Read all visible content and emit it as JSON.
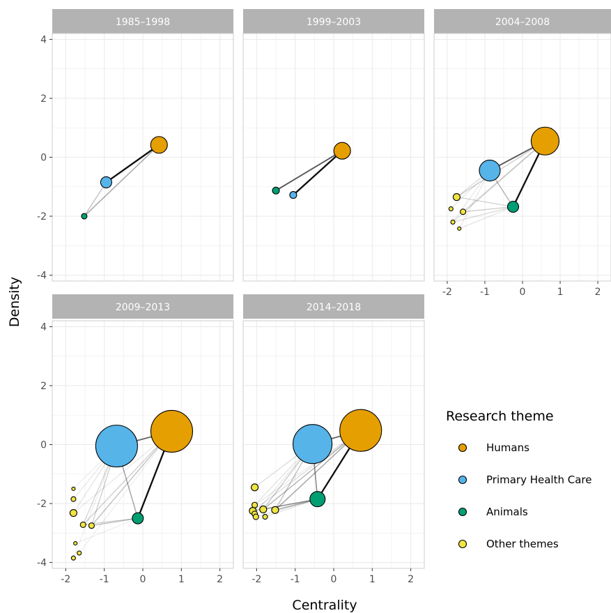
{
  "chart_data": {
    "type": "scatter",
    "xlabel": "Centrality",
    "ylabel": "Density",
    "xlim": [
      -2.35,
      2.35
    ],
    "ylim": [
      -4.2,
      4.2
    ],
    "x_ticks": [
      -2,
      -1,
      0,
      1,
      2
    ],
    "y_ticks": [
      4,
      2,
      0,
      -2,
      -4
    ],
    "grid": true,
    "legend": {
      "title": "Research theme",
      "position": "right",
      "entries": [
        {
          "label": "Humans",
          "color": "#E69F00"
        },
        {
          "label": "Primary Health Care",
          "color": "#56B4E9"
        },
        {
          "label": "Animals",
          "color": "#009E73"
        },
        {
          "label": "Other themes",
          "color": "#F0E442"
        }
      ]
    },
    "panels": [
      {
        "title": "1985–1998",
        "nodes": [
          {
            "theme": "Humans",
            "x": 0.42,
            "y": 0.42,
            "size": 12
          },
          {
            "theme": "Primary Health Care",
            "x": -0.95,
            "y": -0.85,
            "size": 8
          },
          {
            "theme": "Animals",
            "x": -1.52,
            "y": -2.0,
            "size": 4
          }
        ],
        "edges": [
          {
            "from": 0,
            "to": 1,
            "weight": 0.95
          },
          {
            "from": 0,
            "to": 2,
            "weight": 0.35
          },
          {
            "from": 1,
            "to": 2,
            "weight": 0.25
          }
        ]
      },
      {
        "title": "1999–2003",
        "nodes": [
          {
            "theme": "Humans",
            "x": 0.22,
            "y": 0.22,
            "size": 12
          },
          {
            "theme": "Primary Health Care",
            "x": -1.05,
            "y": -1.28,
            "size": 5
          },
          {
            "theme": "Animals",
            "x": -1.5,
            "y": -1.13,
            "size": 5
          }
        ],
        "edges": [
          {
            "from": 0,
            "to": 1,
            "weight": 0.95
          },
          {
            "from": 0,
            "to": 2,
            "weight": 0.65
          }
        ]
      },
      {
        "title": "2004–2008",
        "nodes": [
          {
            "theme": "Humans",
            "x": 0.6,
            "y": 0.55,
            "size": 20
          },
          {
            "theme": "Primary Health Care",
            "x": -0.87,
            "y": -0.45,
            "size": 15
          },
          {
            "theme": "Animals",
            "x": -0.25,
            "y": -1.68,
            "size": 8
          },
          {
            "theme": "Other themes",
            "x": -1.75,
            "y": -1.35,
            "size": 5
          },
          {
            "theme": "Other themes",
            "x": -1.58,
            "y": -1.85,
            "size": 4
          },
          {
            "theme": "Other themes",
            "x": -1.9,
            "y": -1.75,
            "size": 3
          },
          {
            "theme": "Other themes",
            "x": -1.85,
            "y": -2.2,
            "size": 3
          },
          {
            "theme": "Other themes",
            "x": -1.68,
            "y": -2.42,
            "size": 2.5
          }
        ],
        "edges": [
          {
            "from": 0,
            "to": 1,
            "weight": 0.65
          },
          {
            "from": 0,
            "to": 2,
            "weight": 0.95
          },
          {
            "from": 1,
            "to": 2,
            "weight": 0.3
          },
          {
            "from": 0,
            "to": 3,
            "weight": 0.2
          },
          {
            "from": 0,
            "to": 4,
            "weight": 0.18
          },
          {
            "from": 0,
            "to": 6,
            "weight": 0.15
          },
          {
            "from": 1,
            "to": 3,
            "weight": 0.15
          },
          {
            "from": 1,
            "to": 5,
            "weight": 0.1
          },
          {
            "from": 2,
            "to": 4,
            "weight": 0.2
          },
          {
            "from": 2,
            "to": 3,
            "weight": 0.18
          },
          {
            "from": 2,
            "to": 6,
            "weight": 0.15
          },
          {
            "from": 2,
            "to": 7,
            "weight": 0.12
          },
          {
            "from": 1,
            "to": 7,
            "weight": 0.1
          },
          {
            "from": 1,
            "to": 6,
            "weight": 0.1
          }
        ]
      },
      {
        "title": "2009–2013",
        "nodes": [
          {
            "theme": "Humans",
            "x": 0.75,
            "y": 0.45,
            "size": 30
          },
          {
            "theme": "Primary Health Care",
            "x": -0.68,
            "y": -0.05,
            "size": 30
          },
          {
            "theme": "Animals",
            "x": -0.13,
            "y": -2.5,
            "size": 8
          },
          {
            "theme": "Other themes",
            "x": -1.8,
            "y": -1.5,
            "size": 2.5
          },
          {
            "theme": "Other themes",
            "x": -1.8,
            "y": -1.85,
            "size": 3.5
          },
          {
            "theme": "Other themes",
            "x": -1.8,
            "y": -2.32,
            "size": 5
          },
          {
            "theme": "Other themes",
            "x": -1.55,
            "y": -2.72,
            "size": 4
          },
          {
            "theme": "Other themes",
            "x": -1.33,
            "y": -2.75,
            "size": 4
          },
          {
            "theme": "Other themes",
            "x": -1.75,
            "y": -3.35,
            "size": 2.5
          },
          {
            "theme": "Other themes",
            "x": -1.65,
            "y": -3.68,
            "size": 3
          },
          {
            "theme": "Other themes",
            "x": -1.8,
            "y": -3.85,
            "size": 3
          }
        ],
        "edges": [
          {
            "from": 0,
            "to": 1,
            "weight": 0.6
          },
          {
            "from": 0,
            "to": 2,
            "weight": 0.95
          },
          {
            "from": 1,
            "to": 2,
            "weight": 0.35
          },
          {
            "from": 0,
            "to": 7,
            "weight": 0.25
          },
          {
            "from": 0,
            "to": 6,
            "weight": 0.2
          },
          {
            "from": 1,
            "to": 7,
            "weight": 0.2
          },
          {
            "from": 1,
            "to": 6,
            "weight": 0.18
          },
          {
            "from": 2,
            "to": 7,
            "weight": 0.25
          },
          {
            "from": 2,
            "to": 6,
            "weight": 0.2
          },
          {
            "from": 1,
            "to": 5,
            "weight": 0.12
          },
          {
            "from": 1,
            "to": 4,
            "weight": 0.1
          },
          {
            "from": 0,
            "to": 5,
            "weight": 0.1
          },
          {
            "from": 1,
            "to": 3,
            "weight": 0.08
          },
          {
            "from": 0,
            "to": 9,
            "weight": 0.08
          },
          {
            "from": 1,
            "to": 10,
            "weight": 0.08
          },
          {
            "from": 2,
            "to": 8,
            "weight": 0.08
          }
        ]
      },
      {
        "title": "2014–2018",
        "nodes": [
          {
            "theme": "Humans",
            "x": 0.7,
            "y": 0.48,
            "size": 30
          },
          {
            "theme": "Primary Health Care",
            "x": -0.55,
            "y": 0.02,
            "size": 28
          },
          {
            "theme": "Animals",
            "x": -0.42,
            "y": -1.85,
            "size": 11
          },
          {
            "theme": "Other themes",
            "x": -2.05,
            "y": -1.45,
            "size": 5
          },
          {
            "theme": "Other themes",
            "x": -2.05,
            "y": -2.05,
            "size": 4
          },
          {
            "theme": "Other themes",
            "x": -1.52,
            "y": -2.22,
            "size": 5
          },
          {
            "theme": "Other themes",
            "x": -1.83,
            "y": -2.2,
            "size": 5
          },
          {
            "theme": "Other themes",
            "x": -2.1,
            "y": -2.25,
            "size": 5
          },
          {
            "theme": "Other themes",
            "x": -2.05,
            "y": -2.35,
            "size": 4
          },
          {
            "theme": "Other themes",
            "x": -2.02,
            "y": -2.45,
            "size": 4
          },
          {
            "theme": "Other themes",
            "x": -1.78,
            "y": -2.45,
            "size": 3.5
          }
        ],
        "edges": [
          {
            "from": 0,
            "to": 1,
            "weight": 0.6
          },
          {
            "from": 0,
            "to": 2,
            "weight": 0.95
          },
          {
            "from": 1,
            "to": 2,
            "weight": 0.45
          },
          {
            "from": 0,
            "to": 5,
            "weight": 0.35
          },
          {
            "from": 0,
            "to": 6,
            "weight": 0.3
          },
          {
            "from": 1,
            "to": 5,
            "weight": 0.25
          },
          {
            "from": 1,
            "to": 6,
            "weight": 0.22
          },
          {
            "from": 2,
            "to": 5,
            "weight": 0.35
          },
          {
            "from": 2,
            "to": 6,
            "weight": 0.3
          },
          {
            "from": 2,
            "to": 7,
            "weight": 0.25
          },
          {
            "from": 1,
            "to": 3,
            "weight": 0.15
          },
          {
            "from": 1,
            "to": 4,
            "weight": 0.12
          },
          {
            "from": 0,
            "to": 7,
            "weight": 0.15
          },
          {
            "from": 1,
            "to": 8,
            "weight": 0.1
          },
          {
            "from": 2,
            "to": 9,
            "weight": 0.12
          },
          {
            "from": 2,
            "to": 10,
            "weight": 0.12
          },
          {
            "from": 0,
            "to": 4,
            "weight": 0.1
          }
        ]
      }
    ]
  }
}
